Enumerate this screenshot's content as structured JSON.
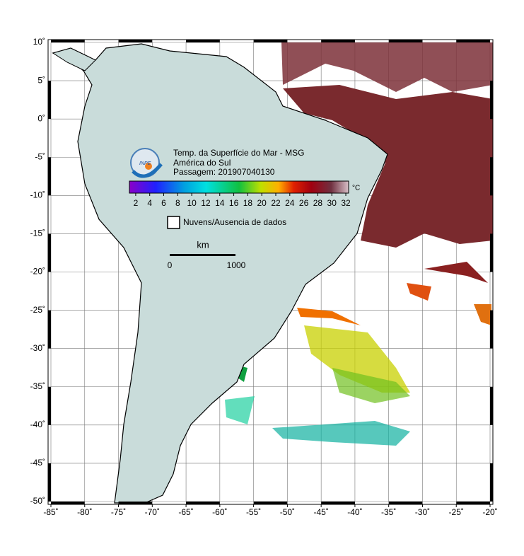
{
  "map": {
    "title": "Temp. da Superfície do Mar - MSG",
    "subtitle": "América do Sul",
    "pass": "Passagem: 201907040130",
    "logo": "INPE",
    "colorbar": {
      "lim": [
        1.1,
        32.4
      ],
      "ticks": [
        2,
        4,
        6,
        8,
        10,
        12,
        14,
        16,
        18,
        20,
        22,
        24,
        26,
        28,
        30,
        32
      ],
      "unit": "°C"
    },
    "no_data_legend": "Nuvens/Ausencia de dados",
    "scale": {
      "unit": "km",
      "ticks": [
        0,
        1000
      ]
    },
    "xlim": [
      -85,
      -20
    ],
    "ylim": [
      -50,
      10
    ],
    "xticks": [
      {
        "value": -85,
        "label": "-85˚"
      },
      {
        "value": -80,
        "label": "-80˚"
      },
      {
        "value": -75,
        "label": "-75˚"
      },
      {
        "value": -70,
        "label": "-70˚"
      },
      {
        "value": -65,
        "label": "-65˚"
      },
      {
        "value": -60,
        "label": "-60˚"
      },
      {
        "value": -55,
        "label": "-55˚"
      },
      {
        "value": -50,
        "label": "-50˚"
      },
      {
        "value": -45,
        "label": "-45˚"
      },
      {
        "value": -40,
        "label": "-40˚"
      },
      {
        "value": -35,
        "label": "-35˚"
      },
      {
        "value": -30,
        "label": "-30˚"
      },
      {
        "value": -25,
        "label": "-25˚"
      },
      {
        "value": -20,
        "label": "-20˚"
      }
    ],
    "yticks": [
      {
        "value": 10,
        "label": "10˚"
      },
      {
        "value": 5,
        "label": "5˚"
      },
      {
        "value": 0,
        "label": "0˚"
      },
      {
        "value": -5,
        "label": "-5˚"
      },
      {
        "value": -10,
        "label": "-10˚"
      },
      {
        "value": -15,
        "label": "-15˚"
      },
      {
        "value": -20,
        "label": "-20˚"
      },
      {
        "value": -25,
        "label": "-25˚"
      },
      {
        "value": -30,
        "label": "-30˚"
      },
      {
        "value": -35,
        "label": "-35˚"
      },
      {
        "value": -40,
        "label": "-40˚"
      },
      {
        "value": -45,
        "label": "-45˚"
      },
      {
        "value": -50,
        "label": "-50˚"
      }
    ],
    "grid": true
  }
}
